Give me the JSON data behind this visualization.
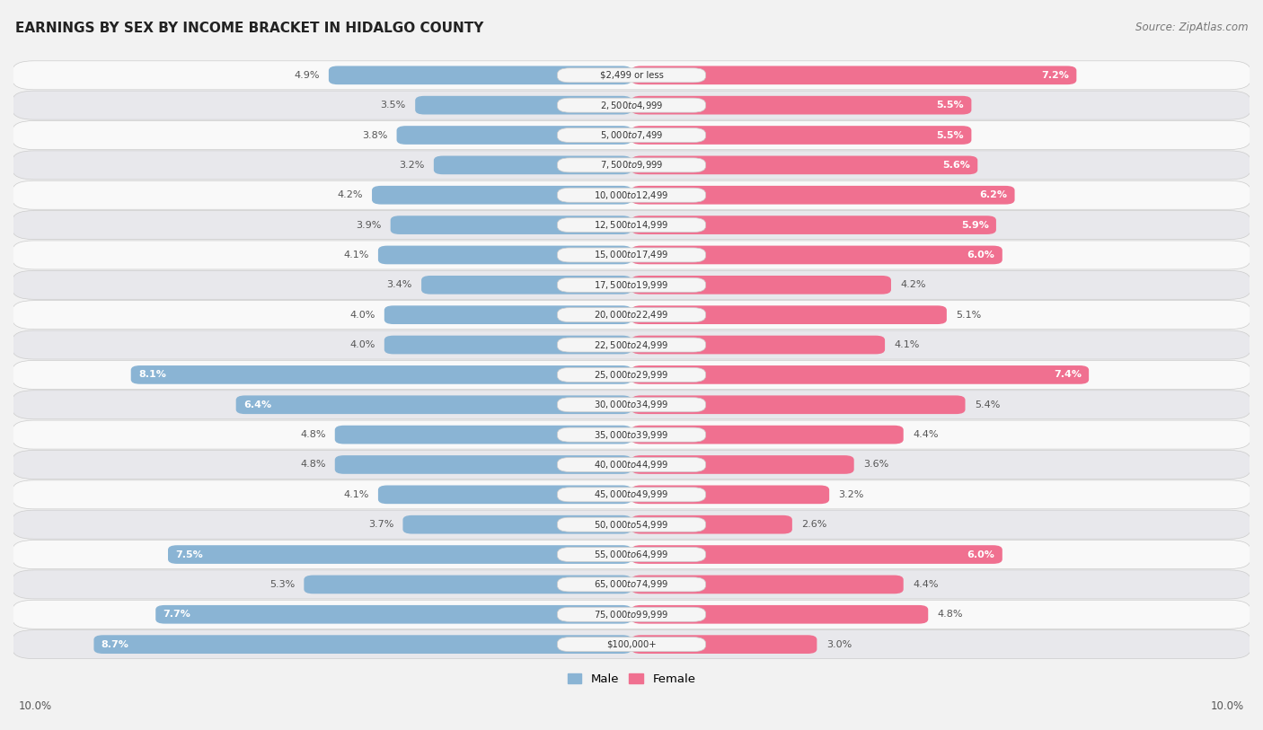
{
  "title": "EARNINGS BY SEX BY INCOME BRACKET IN HIDALGO COUNTY",
  "source": "Source: ZipAtlas.com",
  "categories": [
    "$2,499 or less",
    "$2,500 to $4,999",
    "$5,000 to $7,499",
    "$7,500 to $9,999",
    "$10,000 to $12,499",
    "$12,500 to $14,999",
    "$15,000 to $17,499",
    "$17,500 to $19,999",
    "$20,000 to $22,499",
    "$22,500 to $24,999",
    "$25,000 to $29,999",
    "$30,000 to $34,999",
    "$35,000 to $39,999",
    "$40,000 to $44,999",
    "$45,000 to $49,999",
    "$50,000 to $54,999",
    "$55,000 to $64,999",
    "$65,000 to $74,999",
    "$75,000 to $99,999",
    "$100,000+"
  ],
  "male_values": [
    4.9,
    3.5,
    3.8,
    3.2,
    4.2,
    3.9,
    4.1,
    3.4,
    4.0,
    4.0,
    8.1,
    6.4,
    4.8,
    4.8,
    4.1,
    3.7,
    7.5,
    5.3,
    7.7,
    8.7
  ],
  "female_values": [
    7.2,
    5.5,
    5.5,
    5.6,
    6.2,
    5.9,
    6.0,
    4.2,
    5.1,
    4.1,
    7.4,
    5.4,
    4.4,
    3.6,
    3.2,
    2.6,
    6.0,
    4.4,
    4.8,
    3.0
  ],
  "male_color": "#8ab4d4",
  "female_color": "#f07090",
  "male_inner_label_color": "#ffffff",
  "female_inner_label_color": "#ffffff",
  "male_outer_label_color": "#555555",
  "female_outer_label_color": "#555555",
  "background_color": "#f2f2f2",
  "row_bg_light": "#f9f9f9",
  "row_bg_dark": "#e8e8ec",
  "cat_label_bg": "#f0f0f0",
  "axis_max": 10.0,
  "legend_male": "Male",
  "legend_female": "Female",
  "male_threshold": 5.5,
  "female_threshold": 5.5
}
